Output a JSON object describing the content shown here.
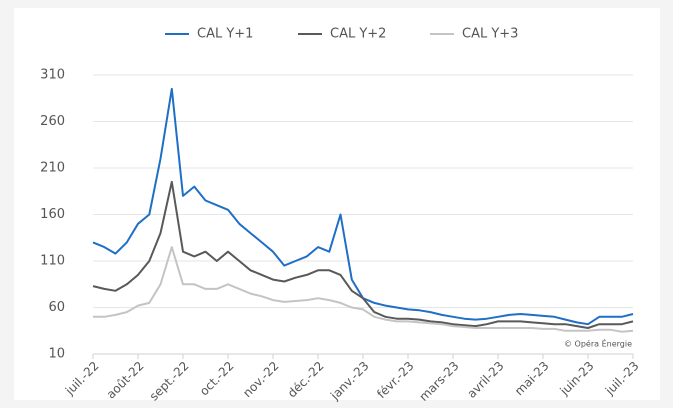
{
  "chart_data": {
    "type": "line",
    "annotation": "© Opéra Énergie",
    "categories": [
      "juil.-22",
      null,
      null,
      null,
      "août-22",
      null,
      null,
      null,
      "sept.-22",
      null,
      null,
      null,
      "oct.-22",
      null,
      null,
      null,
      "nov.-22",
      null,
      null,
      null,
      "déc.-22",
      null,
      null,
      null,
      "janv.-23",
      null,
      null,
      null,
      "févr.-23",
      null,
      null,
      null,
      "mars-23",
      null,
      null,
      null,
      "avril-23",
      null,
      null,
      null,
      "mai-23",
      null,
      null,
      null,
      "juin-23",
      null,
      null,
      null,
      "juil.-23"
    ],
    "series": [
      {
        "name": "CAL Y+1",
        "color": "#1f6fc6",
        "values": [
          130,
          125,
          118,
          130,
          150,
          160,
          220,
          295,
          180,
          190,
          175,
          170,
          165,
          150,
          140,
          130,
          120,
          105,
          110,
          115,
          125,
          120,
          160,
          90,
          70,
          65,
          62,
          60,
          58,
          57,
          55,
          52,
          50,
          48,
          47,
          48,
          50,
          52,
          53,
          52,
          51,
          50,
          47,
          44,
          42,
          50,
          50,
          50,
          53
        ]
      },
      {
        "name": "CAL Y+2",
        "color": "#595959",
        "values": [
          83,
          80,
          78,
          85,
          95,
          110,
          140,
          195,
          120,
          115,
          120,
          110,
          120,
          110,
          100,
          95,
          90,
          88,
          92,
          95,
          100,
          100,
          95,
          78,
          70,
          55,
          50,
          48,
          48,
          47,
          45,
          44,
          42,
          41,
          40,
          42,
          45,
          45,
          45,
          44,
          43,
          42,
          42,
          40,
          38,
          42,
          42,
          42,
          45
        ]
      },
      {
        "name": "CAL Y+3",
        "color": "#c4c4c4",
        "values": [
          50,
          50,
          52,
          55,
          62,
          65,
          85,
          125,
          85,
          85,
          80,
          80,
          85,
          80,
          75,
          72,
          68,
          66,
          67,
          68,
          70,
          68,
          65,
          60,
          58,
          50,
          47,
          45,
          45,
          44,
          43,
          42,
          40,
          39,
          38,
          38,
          38,
          38,
          38,
          38,
          37,
          37,
          35,
          35,
          35,
          36,
          36,
          34,
          35
        ]
      }
    ],
    "ylim": [
      10,
      310
    ],
    "yticks": [
      10,
      60,
      110,
      160,
      210,
      260,
      310
    ],
    "grid": true,
    "legend": "top"
  }
}
